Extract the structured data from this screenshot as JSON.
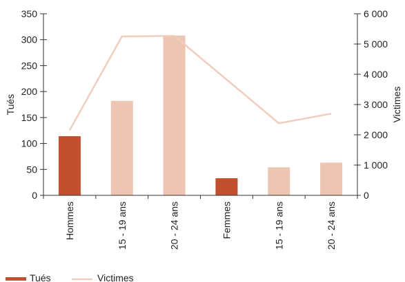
{
  "chart_data": {
    "type": "bar",
    "categories": [
      "Hommes",
      "15 - 19 ans",
      "20 - 24 ans",
      "Femmes",
      "15 - 19 ans",
      "20 - 24 ans"
    ],
    "series": [
      {
        "name": "Tués",
        "type": "bar",
        "axis": "left",
        "values": [
          114,
          182,
          308,
          33,
          54,
          63
        ],
        "bar_colors": [
          "#c0502e",
          "#ecc5b3",
          "#ecc5b3",
          "#c0502e",
          "#ecc5b3",
          "#ecc5b3"
        ]
      },
      {
        "name": "Victimes",
        "type": "line",
        "axis": "right",
        "values": [
          2150,
          5250,
          5270,
          null,
          2380,
          2700
        ],
        "color": "#f0cdbd"
      }
    ],
    "ylabel": "Tués",
    "ylabel_right": "Victimes",
    "ylim": [
      0,
      350
    ],
    "ylim_right": [
      0,
      6000
    ],
    "yticks": [
      "0",
      "50",
      "100",
      "150",
      "200",
      "250",
      "300",
      "350"
    ],
    "yticks_right": [
      "0",
      "1 000",
      "2 000",
      "3 000",
      "4 000",
      "5 000",
      "6 000"
    ],
    "legend": {
      "position": "bottom-left",
      "items": [
        {
          "label": "Tués",
          "color": "#c0502e",
          "kind": "bar"
        },
        {
          "label": "Victimes",
          "color": "#f0cdbd",
          "kind": "line"
        }
      ]
    },
    "grid": false
  }
}
